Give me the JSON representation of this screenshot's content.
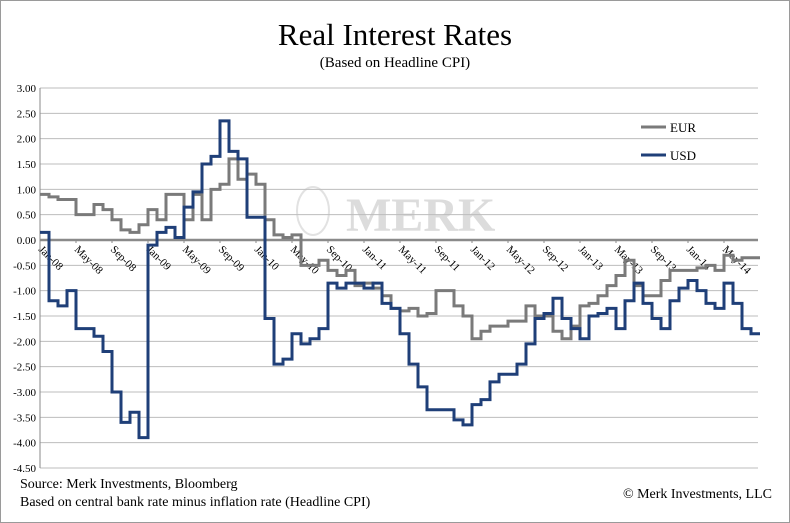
{
  "chart_data": {
    "type": "line",
    "title": "Real Interest Rates",
    "subtitle": "(Based on Headline CPI)",
    "xlabel": "",
    "ylabel": "",
    "ylim": [
      -4.5,
      3.0
    ],
    "yticks": [
      "3.00",
      "2.50",
      "2.00",
      "1.50",
      "1.00",
      "0.50",
      "0.00",
      "-0.50",
      "-1.00",
      "-1.50",
      "-2.00",
      "-2.50",
      "-3.00",
      "-3.50",
      "-4.00",
      "-4.50"
    ],
    "xticks": [
      "Jan-08",
      "May-08",
      "Sep-08",
      "Jan-09",
      "May-09",
      "Sep-09",
      "Jan-10",
      "May-10",
      "Sep-10",
      "Jan-11",
      "May-11",
      "Sep-11",
      "Jan-12",
      "May-12",
      "Sep-12",
      "Jan-13",
      "May-13",
      "Sep-13",
      "Jan-14",
      "May-14"
    ],
    "x_start": "Jan-08",
    "x_step": "monthly",
    "grid": true,
    "legend_position": "right",
    "watermark": "MERK",
    "series": [
      {
        "name": "EUR",
        "color": "#7a7a7a",
        "values": [
          0.9,
          0.85,
          0.8,
          0.8,
          0.5,
          0.5,
          0.7,
          0.6,
          0.4,
          0.2,
          0.15,
          0.3,
          0.6,
          0.4,
          0.9,
          0.9,
          0.4,
          0.9,
          0.4,
          1.0,
          1.1,
          1.6,
          1.2,
          1.3,
          1.1,
          0.4,
          0.1,
          0.05,
          0.1,
          -0.5,
          -0.5,
          -0.4,
          -0.6,
          -0.7,
          -0.6,
          -0.9,
          -0.85,
          -0.95,
          -1.1,
          -1.35,
          -1.4,
          -1.35,
          -1.5,
          -1.45,
          -1.0,
          -1.0,
          -1.3,
          -1.5,
          -1.95,
          -1.8,
          -1.7,
          -1.7,
          -1.6,
          -1.6,
          -1.3,
          -1.5,
          -1.5,
          -1.8,
          -1.95,
          -1.7,
          -1.3,
          -1.25,
          -1.1,
          -0.9,
          -0.7,
          -0.4,
          -0.9,
          -1.1,
          -1.1,
          -0.8,
          -0.6,
          -0.6,
          -0.6,
          -0.55,
          -0.5,
          -0.6,
          -0.3,
          -0.4,
          -0.35,
          -0.35,
          -0.35
        ]
      },
      {
        "name": "USD",
        "color": "#1f3f78",
        "values": [
          0.15,
          -1.2,
          -1.3,
          -1.0,
          -1.75,
          -1.75,
          -1.9,
          -2.2,
          -3.0,
          -3.6,
          -3.4,
          -3.9,
          -0.1,
          0.15,
          0.25,
          0.05,
          0.65,
          0.95,
          1.5,
          1.65,
          2.35,
          1.75,
          1.6,
          0.45,
          0.45,
          -1.55,
          -2.45,
          -2.35,
          -1.85,
          -2.05,
          -1.95,
          -1.75,
          -0.85,
          -0.95,
          -0.85,
          -0.85,
          -0.95,
          -0.85,
          -1.25,
          -1.35,
          -1.85,
          -2.45,
          -2.9,
          -3.35,
          -3.35,
          -3.35,
          -3.55,
          -3.65,
          -3.25,
          -3.15,
          -2.8,
          -2.65,
          -2.65,
          -2.45,
          -2.05,
          -1.55,
          -1.45,
          -1.15,
          -1.55,
          -1.75,
          -1.95,
          -1.5,
          -1.45,
          -1.35,
          -1.75,
          -1.2,
          -0.85,
          -1.25,
          -1.55,
          -1.75,
          -1.2,
          -0.95,
          -0.8,
          -1.0,
          -1.25,
          -1.35,
          -0.85,
          -1.25,
          -1.75,
          -1.85,
          -1.85
        ]
      }
    ]
  },
  "footer": {
    "source": "Source: Merk Investments, Bloomberg",
    "note": "Based on central bank rate minus inflation rate (Headline CPI)",
    "copyright": "© Merk Investments, LLC"
  }
}
